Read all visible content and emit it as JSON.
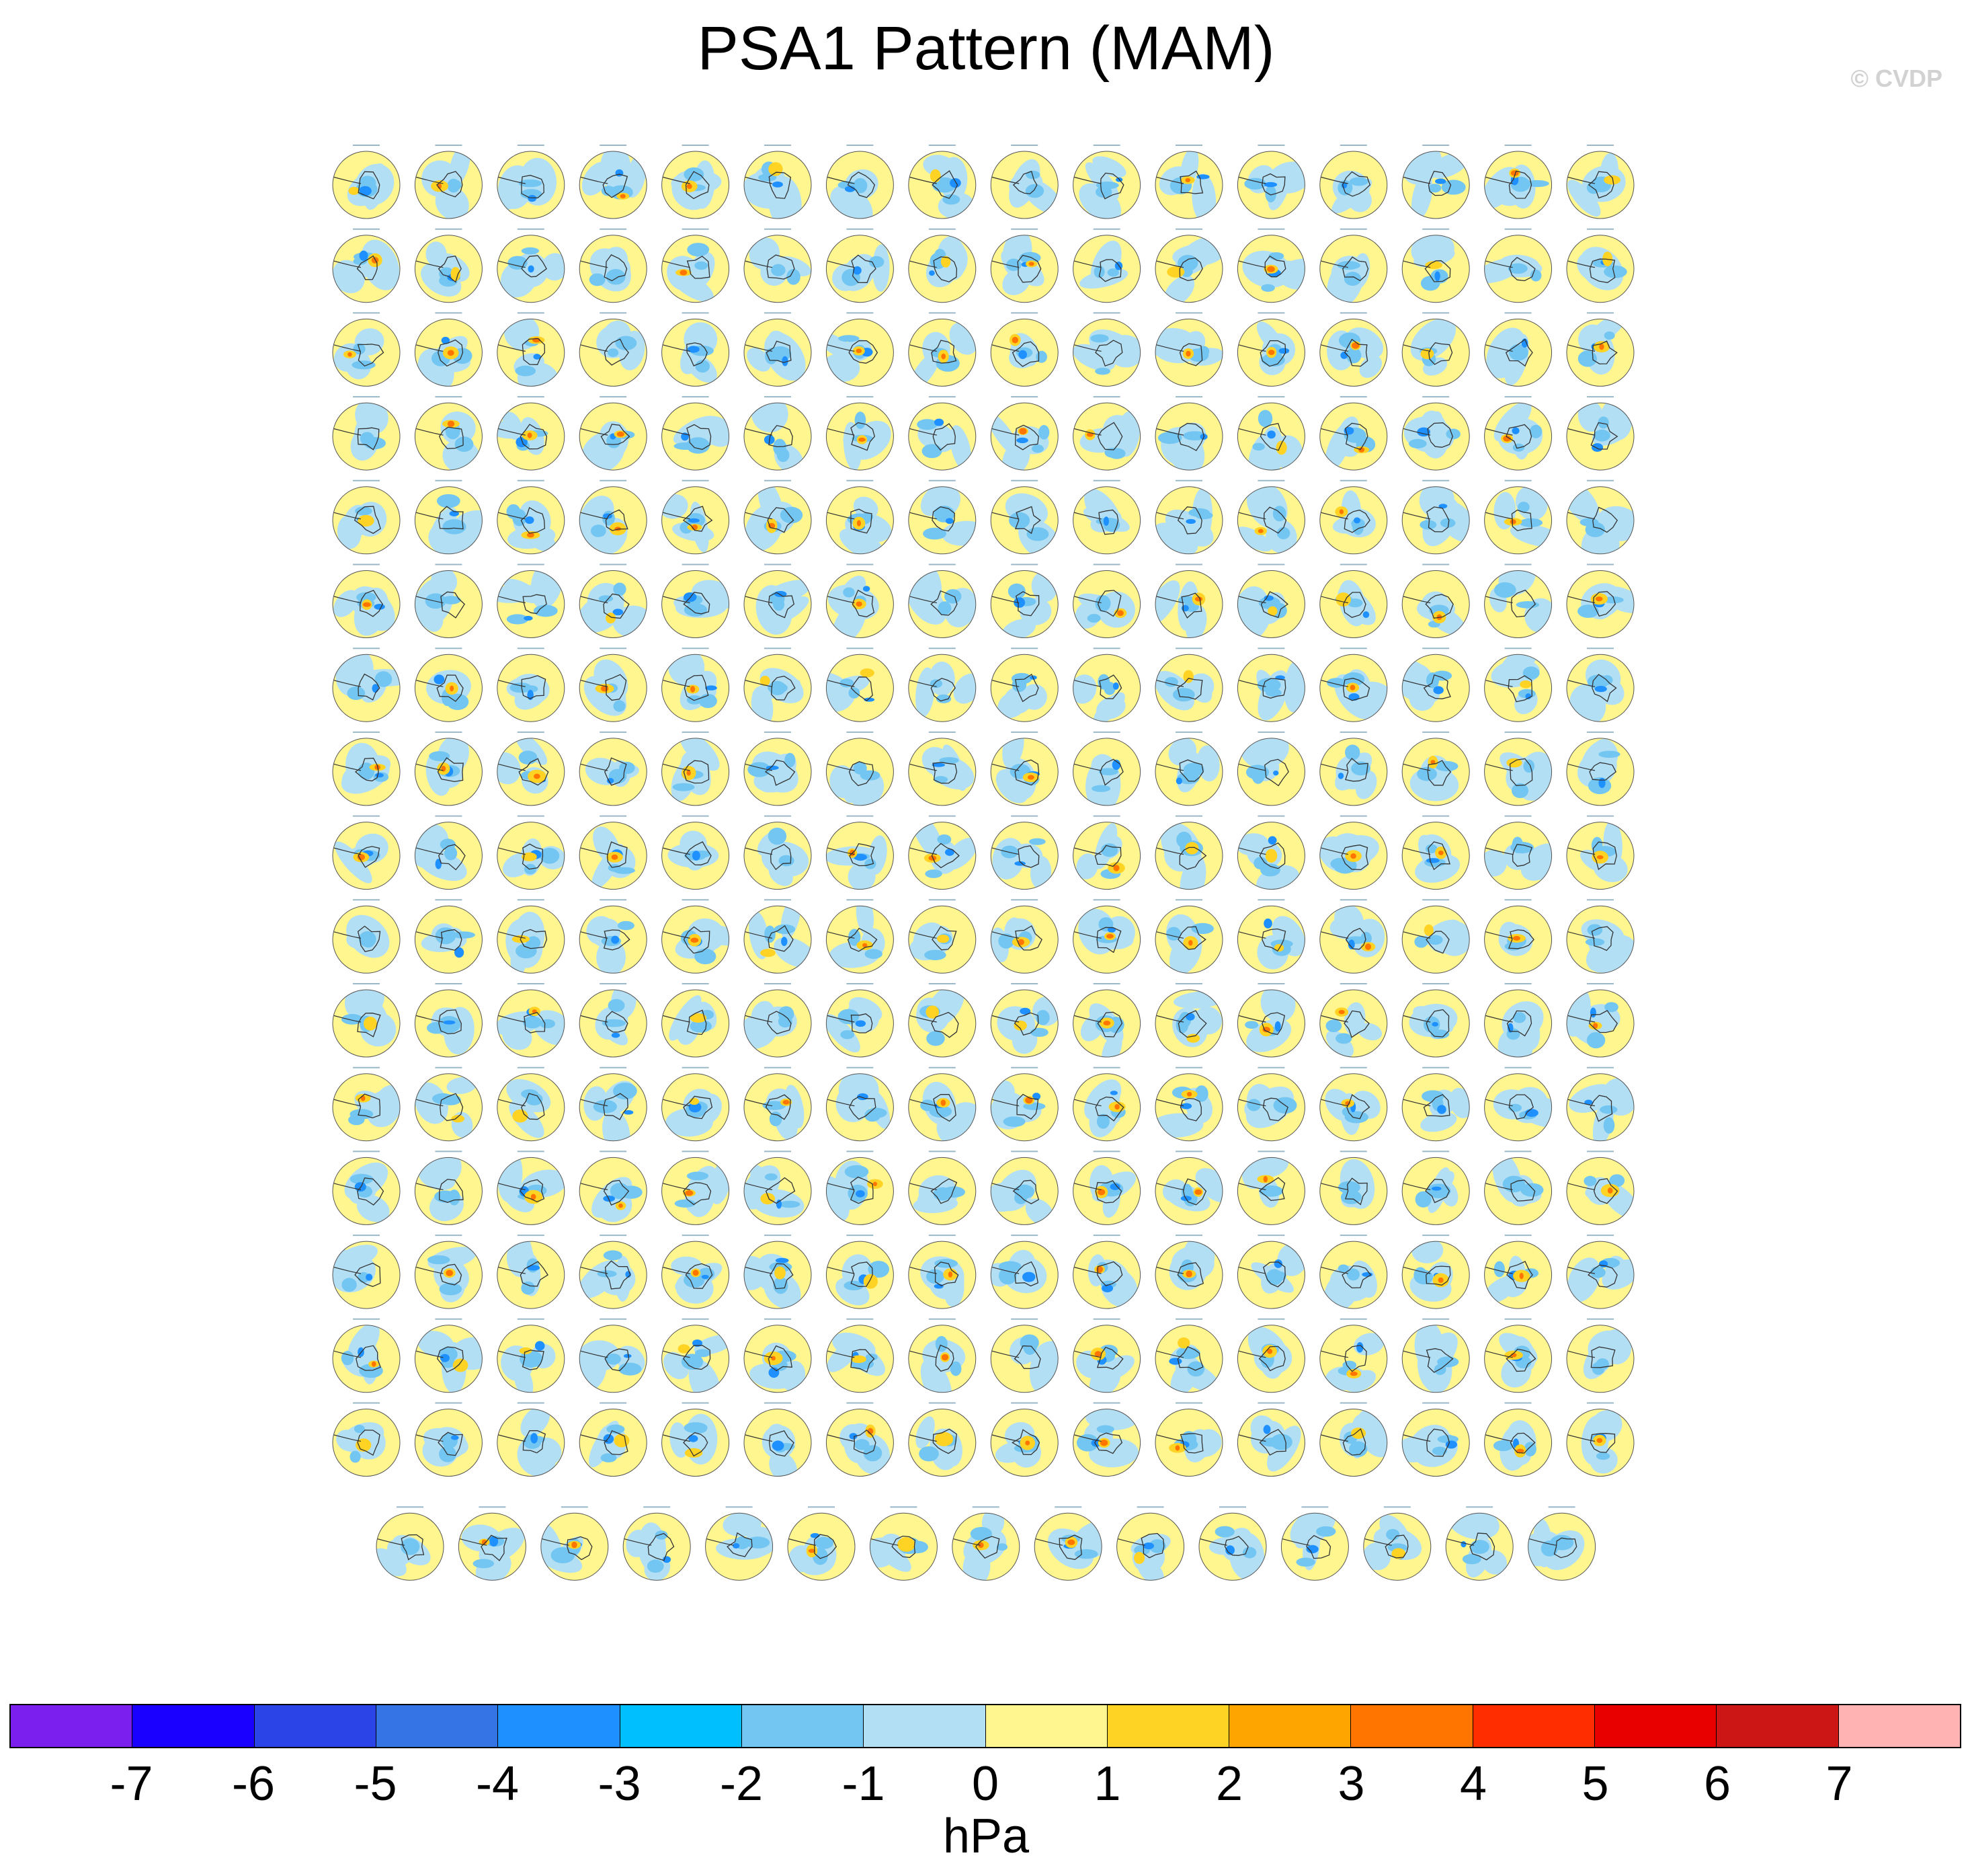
{
  "title": "PSA1 Pattern (MAM)",
  "copyright": "© CVDP",
  "colorbar": {
    "units": "hPa",
    "tick_labels": [
      "-7",
      "-6",
      "-5",
      "-4",
      "-3",
      "-2",
      "-1",
      "0",
      "1",
      "2",
      "3",
      "4",
      "5",
      "6",
      "7"
    ],
    "colors": [
      "#7b1fef",
      "#1a00ff",
      "#2a44e8",
      "#3474e4",
      "#1e90ff",
      "#00bfff",
      "#73c6f2",
      "#b3dff4",
      "#fff68f",
      "#ffd324",
      "#ffa500",
      "#ff7500",
      "#ff2d00",
      "#e80000",
      "#cc1515",
      "#ffb3b3"
    ]
  },
  "panels": {
    "rows": 17,
    "columns": 16,
    "last_row_count": 15,
    "map_colors": {
      "background": "#fff68f",
      "negative_light": "#b3dff4",
      "negative_mid": "#73c6f2",
      "negative_strong": "#1e90ff",
      "positive_mid": "#ffd324",
      "positive_strong": "#ff7500",
      "coastline": "#333333"
    }
  }
}
